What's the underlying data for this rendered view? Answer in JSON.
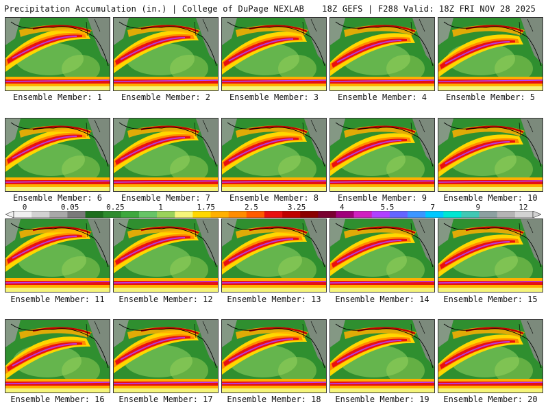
{
  "header": {
    "left": "Precipitation Accumulation (in.) | College of DuPage NEXLAB",
    "right": "18Z GEFS | F288 Valid: 18Z FRI NOV 28 2025"
  },
  "member_prefix": "Ensemble Member: ",
  "panels": [
    1,
    2,
    3,
    4,
    5,
    6,
    7,
    8,
    9,
    10,
    11,
    12,
    13,
    14,
    15,
    16,
    17,
    18,
    19,
    20
  ],
  "colorbar": {
    "labels": [
      "0",
      "0.05",
      "0.25",
      "1",
      "1.75",
      "2.5",
      "3.25",
      "4",
      "5.5",
      "7",
      "9",
      "12"
    ],
    "colors": [
      "#f0f0f0",
      "#d2d2d2",
      "#a8a8a8",
      "#7a7a7a",
      "#1e6e1e",
      "#2e8b2e",
      "#3ea83e",
      "#66c466",
      "#9ad25a",
      "#f5f57a",
      "#ffd700",
      "#ffb000",
      "#ff8c00",
      "#ff5a00",
      "#e81010",
      "#c00000",
      "#8b0000",
      "#7a0030",
      "#a0007a",
      "#d020c0",
      "#b040ff",
      "#6464ff",
      "#3c96ff",
      "#00c8ff",
      "#00e6d2",
      "#40c8b4",
      "#8ca0a0",
      "#b4b4b4",
      "#d2d2d2"
    ]
  }
}
